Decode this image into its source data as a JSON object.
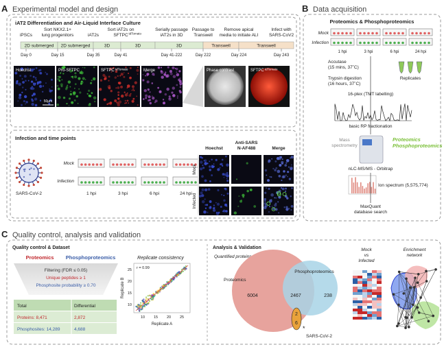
{
  "panel_a": {
    "label": "A",
    "title": "Experimental model and design",
    "culture": {
      "title": "iAT2 Differentiation and Air-Liquid Interface Culture",
      "steps": [
        {
          "lines": [
            "iPSCs"
          ]
        },
        {
          "lines": [
            "Sort NKX2.1+",
            "lung progenitors"
          ]
        },
        {
          "lines": [
            "iAT2s"
          ]
        },
        {
          "lines": [
            "Sort iAT2s on",
            "SFTPC"
          ],
          "sup": "tdTomato"
        },
        {
          "lines": [
            "Serially passage",
            "iAT2s in 3D"
          ]
        },
        {
          "lines": [
            "Passage to",
            "Transwell"
          ]
        },
        {
          "lines": [
            "Remove apical",
            "media to initiate ALI"
          ]
        },
        {
          "lines": [
            "Infect with",
            "SARS-CoV2"
          ]
        }
      ],
      "phases": [
        "2D submerged",
        "2D submerged",
        "3D",
        "3D",
        "3D",
        "Transwell",
        "Transwell"
      ],
      "days": [
        "Day 0",
        "Day 15",
        "Day 35",
        "Day 41",
        "Day 41-222",
        "Day 222",
        "Day 224",
        "Day 243"
      ],
      "images": [
        {
          "label": "Hoechst"
        },
        {
          "label": "Pro-SFTPC"
        },
        {
          "label": "SFTPC",
          "sup": "tdTomato"
        },
        {
          "label": "Merge"
        },
        {
          "label": "Phase contrast"
        },
        {
          "label": "SFTPC",
          "sup": "tdTomato"
        }
      ],
      "scale_bar": "50μm"
    },
    "infection": {
      "title": "Infection and time points",
      "conditions": [
        "Mock",
        "Infection"
      ],
      "virus": "SARS-CoV-2",
      "timepoints": [
        "1 hpi",
        "3 hpi",
        "6 hpi",
        "24 hpi"
      ],
      "stains": [
        [
          "Hoechst"
        ],
        [
          "Anti-SARS",
          "N-AF488"
        ],
        [
          "Merge"
        ]
      ],
      "rows": [
        "Mock",
        "Infected"
      ]
    }
  },
  "panel_b": {
    "label": "B",
    "title": "Data acquisition",
    "subtitle": "Proteomics & Phosphoproteomics",
    "conditions": [
      "Mock",
      "Infection"
    ],
    "timepoints": [
      "1 hpi",
      "3 hpi",
      "6 hpi",
      "24 hpi"
    ],
    "accutase": [
      "Accutase",
      "(15 mins, 37˚C)"
    ],
    "replicates": "Replicates",
    "trypsin": [
      "Trypsin digestion",
      "(16 hours, 37˚C)"
    ],
    "tmt": "16-plex (TMT labelling)",
    "fractionation": "basic RP fractionation",
    "ms": [
      "Mass",
      "spectrometry"
    ],
    "ms_types": [
      "Proteomics",
      "Phosphoproteomics"
    ],
    "instrument": "nLC-MS/MS - Orbitrap",
    "spectrum": "Ion spectrum (5,575,774)",
    "search": [
      "MaxQuant",
      "database search"
    ]
  },
  "panel_c": {
    "label": "C",
    "title": "Quality control, analysis and validation",
    "qc": {
      "title": "Quality control & Dataset",
      "datasets": [
        "Proteomics",
        "Phosphoproteomics"
      ],
      "filters": [
        "Filtering (FDR ≤ 0.05)",
        "Unique peptides ≥ 1",
        "Phosphosite probability ≥ 0.70"
      ],
      "table": {
        "header": [
          "Total",
          "Differential"
        ],
        "rows": [
          [
            "Proteins: 8,471",
            "2,872"
          ],
          [
            "Phosphosites: 14,289",
            "4,688"
          ]
        ]
      }
    },
    "replicate": {
      "title": "Replicate consistency",
      "r": "r = 0.99",
      "x_label": "Replicate A",
      "y_label": "Replicate B",
      "xticks": [
        10,
        15,
        20,
        25
      ],
      "yticks": [
        10,
        15,
        20,
        25
      ]
    },
    "analysis": {
      "title": "Analysis & Validation",
      "venn": {
        "title": "Quantified proteins",
        "sets": [
          "Proteomics",
          "Phosphoproteomics"
        ],
        "counts": [
          6004,
          2467,
          238
        ],
        "virus_counts": [
          2,
          6
        ],
        "star": "*",
        "virus": "SARS-CoV-2"
      },
      "heatmap_title": [
        "Mock",
        "vs",
        "Infected"
      ],
      "network_title": [
        "Enrichment",
        "network"
      ]
    }
  }
}
